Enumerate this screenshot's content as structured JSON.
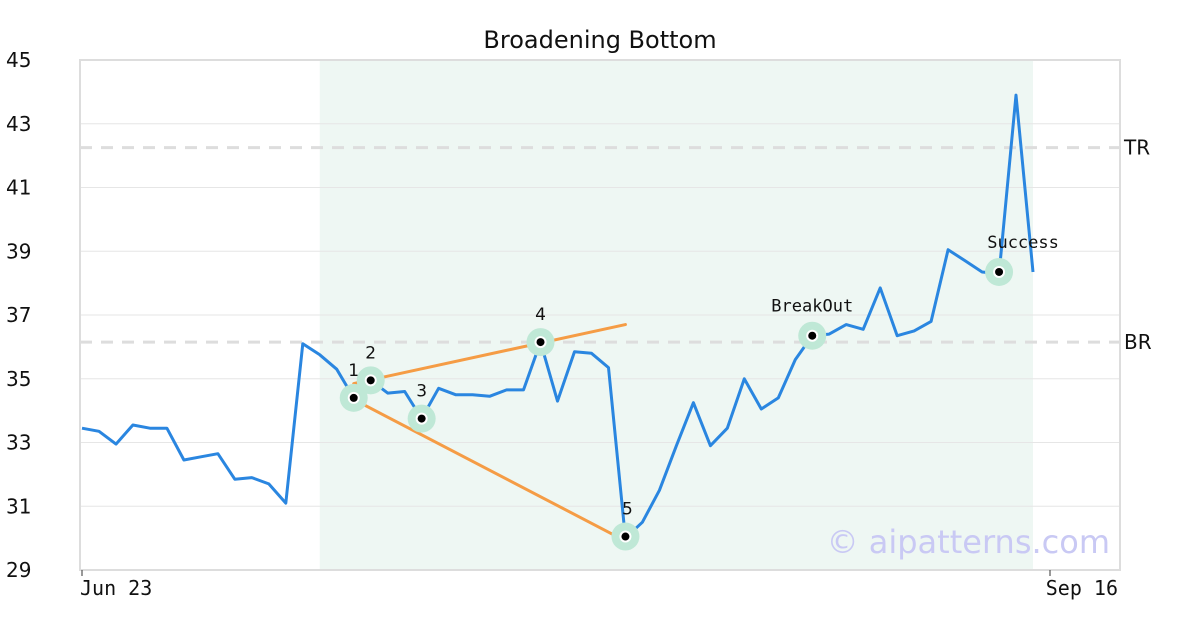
{
  "chart_data": {
    "type": "line",
    "title": "Broadening Bottom",
    "ylim": [
      29,
      45
    ],
    "yticks": [
      "29",
      "31",
      "33",
      "35",
      "37",
      "39",
      "41",
      "43",
      "45"
    ],
    "xlim": [
      0,
      57
    ],
    "xticks": [
      {
        "label": "Jun 23",
        "x": 0
      },
      {
        "label": "Sep 16",
        "x": 57
      }
    ],
    "grid": true,
    "pattern_region": {
      "x_start": 14,
      "x_end": 56,
      "color": "#eef7f3"
    },
    "series": [
      {
        "color": "#2a86e0",
        "values": [
          33.45,
          33.35,
          32.95,
          33.55,
          33.45,
          33.45,
          32.45,
          32.55,
          32.65,
          31.85,
          31.9,
          31.7,
          31.1,
          36.1,
          35.75,
          35.3,
          34.4,
          34.95,
          34.55,
          34.6,
          33.75,
          34.7,
          34.5,
          34.5,
          34.45,
          34.65,
          34.65,
          36.15,
          34.3,
          35.85,
          35.8,
          35.35,
          30.0,
          30.5,
          31.5,
          32.9,
          34.25,
          32.9,
          33.45,
          35.0,
          34.05,
          34.4,
          35.6,
          36.35,
          36.4,
          36.7,
          36.55,
          37.85,
          36.35,
          36.5,
          36.8,
          39.05,
          38.7,
          38.35,
          38.3,
          43.9,
          38.35
        ]
      }
    ],
    "levels": [
      {
        "label": "TR",
        "y": 42.25
      },
      {
        "label": "BR",
        "y": 36.15
      }
    ],
    "trendlines": [
      {
        "color": "#f59c45",
        "from": [
          16,
          34.85
        ],
        "to": [
          32,
          36.7
        ]
      },
      {
        "color": "#f59c45",
        "from": [
          16,
          34.35
        ],
        "to": [
          31.5,
          30.05
        ]
      }
    ],
    "points": [
      {
        "label": "1",
        "x": 16,
        "y": 34.4
      },
      {
        "label": "2",
        "x": 17,
        "y": 34.95
      },
      {
        "label": "3",
        "x": 20,
        "y": 33.75
      },
      {
        "label": "4",
        "x": 27,
        "y": 36.15
      },
      {
        "label": "5",
        "x": 32,
        "y": 30.05
      }
    ],
    "annotations": [
      {
        "label": "BreakOut",
        "x": 43,
        "y": 36.35
      },
      {
        "label": "Success",
        "x": 54,
        "y": 38.35
      }
    ],
    "watermark": "© aipatterns.com"
  }
}
